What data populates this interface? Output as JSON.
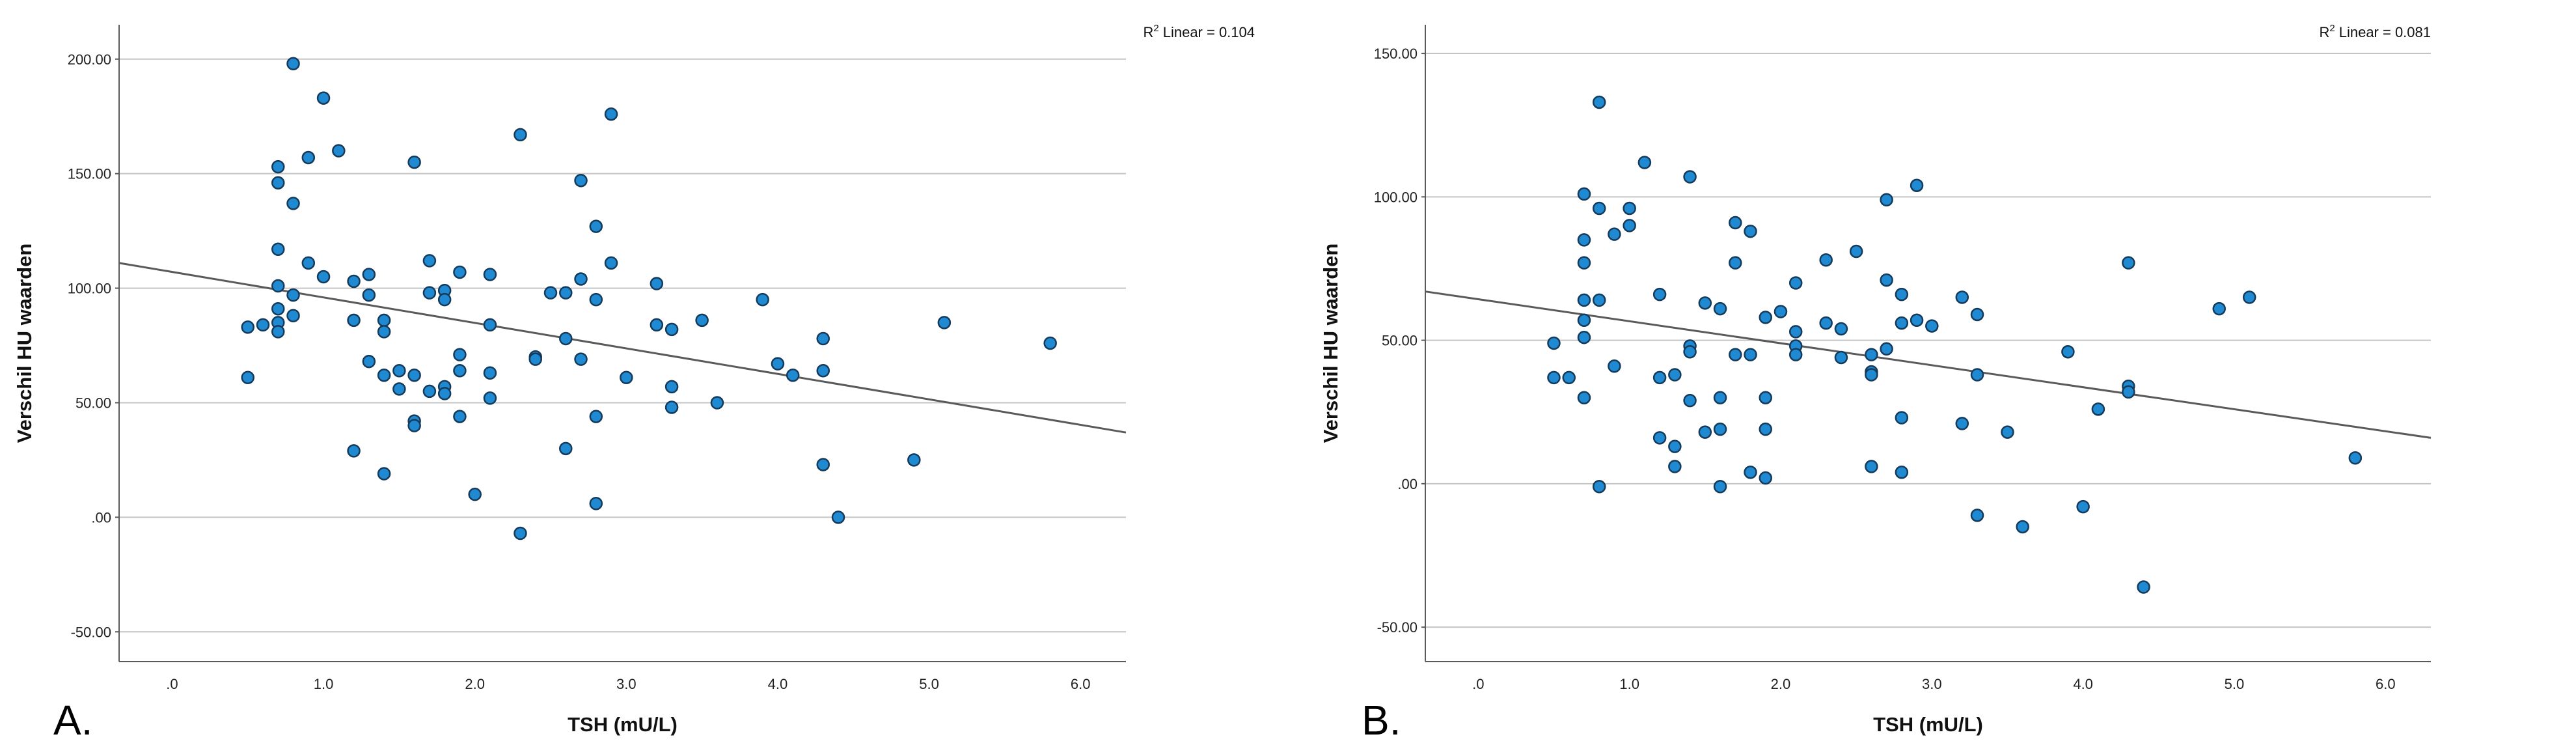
{
  "chart_data": [
    {
      "type": "scatter",
      "panel_label": "A.",
      "xlabel": "TSH (mU/L)",
      "ylabel": "Verschil HU waarden",
      "xlim": [
        -0.35,
        6.3
      ],
      "ylim": [
        -63,
        215
      ],
      "xticks": [
        0,
        1,
        2,
        3,
        4,
        5,
        6
      ],
      "xtick_labels": [
        ".0",
        "1.0",
        "2.0",
        "3.0",
        "4.0",
        "5.0",
        "6.0"
      ],
      "yticks": [
        -50,
        0,
        50,
        100,
        150,
        200
      ],
      "ytick_labels": [
        "-50.00",
        ".00",
        "50.00",
        "100.00",
        "150.00",
        "200.00"
      ],
      "r2_label": "Linear = 0.104",
      "r2_prefix": "R",
      "r2_sup": "2",
      "fit_line": {
        "x": [
          -0.35,
          6.3
        ],
        "y": [
          111,
          37
        ]
      },
      "points": [
        [
          0.5,
          83
        ],
        [
          0.5,
          61
        ],
        [
          0.6,
          84
        ],
        [
          0.7,
          153
        ],
        [
          0.7,
          146
        ],
        [
          0.7,
          117
        ],
        [
          0.7,
          101
        ],
        [
          0.7,
          91
        ],
        [
          0.7,
          85
        ],
        [
          0.7,
          81
        ],
        [
          0.8,
          198
        ],
        [
          0.8,
          137
        ],
        [
          0.8,
          97
        ],
        [
          0.8,
          88
        ],
        [
          0.9,
          157
        ],
        [
          0.9,
          111
        ],
        [
          1.0,
          183
        ],
        [
          1.0,
          105
        ],
        [
          1.1,
          160
        ],
        [
          1.2,
          103
        ],
        [
          1.2,
          86
        ],
        [
          1.2,
          29
        ],
        [
          1.3,
          106
        ],
        [
          1.3,
          97
        ],
        [
          1.3,
          68
        ],
        [
          1.4,
          86
        ],
        [
          1.4,
          81
        ],
        [
          1.4,
          62
        ],
        [
          1.4,
          19
        ],
        [
          1.5,
          64
        ],
        [
          1.5,
          56
        ],
        [
          1.6,
          155
        ],
        [
          1.6,
          62
        ],
        [
          1.6,
          42
        ],
        [
          1.6,
          40
        ],
        [
          1.7,
          112
        ],
        [
          1.7,
          98
        ],
        [
          1.7,
          55
        ],
        [
          1.8,
          99
        ],
        [
          1.8,
          95
        ],
        [
          1.8,
          57
        ],
        [
          1.8,
          54
        ],
        [
          1.9,
          107
        ],
        [
          1.9,
          71
        ],
        [
          1.9,
          64
        ],
        [
          1.9,
          44
        ],
        [
          2.0,
          10
        ],
        [
          2.1,
          106
        ],
        [
          2.1,
          84
        ],
        [
          2.1,
          63
        ],
        [
          2.1,
          52
        ],
        [
          2.3,
          167
        ],
        [
          2.3,
          -7
        ],
        [
          2.4,
          70
        ],
        [
          2.4,
          69
        ],
        [
          2.5,
          98
        ],
        [
          2.6,
          98
        ],
        [
          2.6,
          78
        ],
        [
          2.6,
          30
        ],
        [
          2.7,
          147
        ],
        [
          2.7,
          104
        ],
        [
          2.7,
          69
        ],
        [
          2.8,
          127
        ],
        [
          2.8,
          95
        ],
        [
          2.8,
          44
        ],
        [
          2.8,
          6
        ],
        [
          2.9,
          176
        ],
        [
          2.9,
          111
        ],
        [
          3.0,
          61
        ],
        [
          3.2,
          102
        ],
        [
          3.2,
          84
        ],
        [
          3.3,
          82
        ],
        [
          3.3,
          57
        ],
        [
          3.3,
          48
        ],
        [
          3.5,
          86
        ],
        [
          3.6,
          50
        ],
        [
          3.9,
          95
        ],
        [
          4.0,
          67
        ],
        [
          4.1,
          62
        ],
        [
          4.3,
          78
        ],
        [
          4.3,
          64
        ],
        [
          4.3,
          23
        ],
        [
          4.4,
          0
        ],
        [
          4.9,
          25
        ],
        [
          5.1,
          85
        ],
        [
          5.8,
          76
        ]
      ]
    },
    {
      "type": "scatter",
      "panel_label": "B.",
      "xlabel": "TSH (mU/L)",
      "ylabel": "Verschil HU waarden",
      "xlim": [
        -0.35,
        6.3
      ],
      "ylim": [
        -62,
        160
      ],
      "xticks": [
        0,
        1,
        2,
        3,
        4,
        5,
        6
      ],
      "xtick_labels": [
        ".0",
        "1.0",
        "2.0",
        "3.0",
        "4.0",
        "5.0",
        "6.0"
      ],
      "yticks": [
        -50,
        0,
        50,
        100,
        150
      ],
      "ytick_labels": [
        "-50.00",
        ".00",
        "50.00",
        "100.00",
        "150.00"
      ],
      "r2_label": "Linear = 0.081",
      "r2_prefix": "R",
      "r2_sup": "2",
      "fit_line": {
        "x": [
          -0.35,
          6.3
        ],
        "y": [
          67,
          16
        ]
      },
      "points": [
        [
          0.5,
          49
        ],
        [
          0.5,
          37
        ],
        [
          0.6,
          37
        ],
        [
          0.7,
          101
        ],
        [
          0.7,
          85
        ],
        [
          0.7,
          77
        ],
        [
          0.7,
          64
        ],
        [
          0.7,
          57
        ],
        [
          0.7,
          51
        ],
        [
          0.7,
          30
        ],
        [
          0.8,
          133
        ],
        [
          0.8,
          96
        ],
        [
          0.8,
          64
        ],
        [
          0.8,
          -1
        ],
        [
          0.9,
          87
        ],
        [
          0.9,
          41
        ],
        [
          1.0,
          96
        ],
        [
          1.0,
          90
        ],
        [
          1.1,
          112
        ],
        [
          1.2,
          66
        ],
        [
          1.2,
          37
        ],
        [
          1.2,
          16
        ],
        [
          1.3,
          38
        ],
        [
          1.3,
          13
        ],
        [
          1.3,
          6
        ],
        [
          1.4,
          107
        ],
        [
          1.4,
          48
        ],
        [
          1.4,
          46
        ],
        [
          1.4,
          29
        ],
        [
          1.5,
          63
        ],
        [
          1.5,
          18
        ],
        [
          1.6,
          61
        ],
        [
          1.6,
          30
        ],
        [
          1.6,
          19
        ],
        [
          1.6,
          -1
        ],
        [
          1.7,
          91
        ],
        [
          1.7,
          77
        ],
        [
          1.7,
          45
        ],
        [
          1.8,
          88
        ],
        [
          1.8,
          45
        ],
        [
          1.8,
          4
        ],
        [
          1.9,
          58
        ],
        [
          1.9,
          30
        ],
        [
          1.9,
          19
        ],
        [
          1.9,
          2
        ],
        [
          2.0,
          60
        ],
        [
          2.1,
          70
        ],
        [
          2.1,
          53
        ],
        [
          2.1,
          48
        ],
        [
          2.1,
          45
        ],
        [
          2.3,
          78
        ],
        [
          2.3,
          56
        ],
        [
          2.4,
          54
        ],
        [
          2.4,
          44
        ],
        [
          2.5,
          81
        ],
        [
          2.6,
          45
        ],
        [
          2.6,
          39
        ],
        [
          2.6,
          38
        ],
        [
          2.6,
          6
        ],
        [
          2.7,
          99
        ],
        [
          2.7,
          71
        ],
        [
          2.7,
          47
        ],
        [
          2.8,
          66
        ],
        [
          2.8,
          56
        ],
        [
          2.8,
          23
        ],
        [
          2.8,
          4
        ],
        [
          2.9,
          104
        ],
        [
          2.9,
          57
        ],
        [
          3.0,
          55
        ],
        [
          3.2,
          65
        ],
        [
          3.2,
          21
        ],
        [
          3.3,
          59
        ],
        [
          3.3,
          38
        ],
        [
          3.3,
          -11
        ],
        [
          3.5,
          18
        ],
        [
          3.6,
          -15
        ],
        [
          3.9,
          46
        ],
        [
          4.0,
          -8
        ],
        [
          4.1,
          26
        ],
        [
          4.3,
          77
        ],
        [
          4.3,
          34
        ],
        [
          4.3,
          32
        ],
        [
          4.4,
          -36
        ],
        [
          4.9,
          61
        ],
        [
          5.1,
          65
        ],
        [
          5.8,
          9
        ]
      ]
    }
  ]
}
